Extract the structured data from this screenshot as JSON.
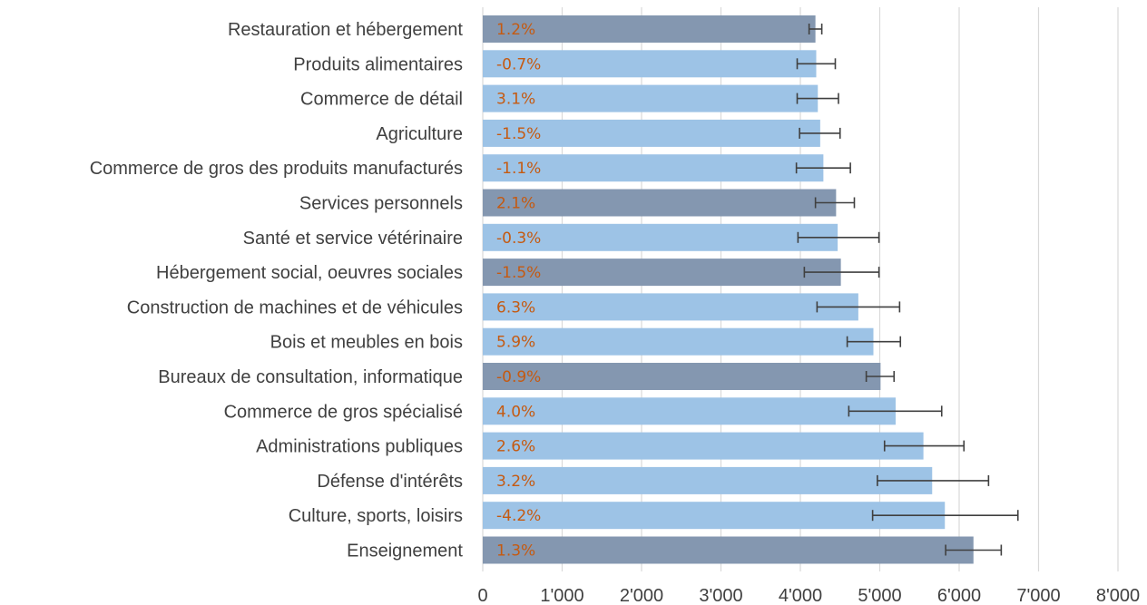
{
  "chart_data": {
    "type": "bar",
    "orientation": "horizontal",
    "categories": [
      "Restauration et hébergement",
      "Produits alimentaires",
      "Commerce de détail",
      "Agriculture",
      "Commerce de gros des produits manufacturés",
      "Services personnels",
      "Santé et service vétérinaire",
      "Hébergement social, oeuvres sociales",
      "Construction de machines et de véhicules",
      "Bois et meubles en bois",
      "Bureaux de consultation, informatique",
      "Commerce de gros spécialisé",
      "Administrations publiques",
      "Défense d'intérêts",
      "Culture, sports, loisirs",
      "Enseignement"
    ],
    "values": [
      4190,
      4200,
      4220,
      4250,
      4290,
      4450,
      4470,
      4510,
      4730,
      4920,
      5010,
      5200,
      5550,
      5660,
      5820,
      6180
    ],
    "error_low": [
      4110,
      3960,
      3960,
      3990,
      3950,
      4190,
      3970,
      4050,
      4210,
      4590,
      4830,
      4610,
      5060,
      4970,
      4910,
      5830
    ],
    "error_high": [
      4270,
      4440,
      4480,
      4500,
      4630,
      4680,
      4990,
      4990,
      5250,
      5260,
      5180,
      5780,
      6060,
      6370,
      6740,
      6530
    ],
    "data_labels": [
      "1.2%",
      "-0.7%",
      "3.1%",
      "-1.5%",
      "-1.1%",
      "2.1%",
      "-0.3%",
      "-1.5%",
      "6.3%",
      "5.9%",
      "-0.9%",
      "4.0%",
      "2.6%",
      "3.2%",
      "-4.2%",
      "1.3%"
    ],
    "highlighted": [
      true,
      false,
      false,
      false,
      false,
      true,
      false,
      true,
      false,
      false,
      true,
      false,
      false,
      false,
      false,
      true
    ],
    "xlim": [
      0,
      8000
    ],
    "x_ticks": [
      0,
      1000,
      2000,
      3000,
      4000,
      5000,
      6000,
      7000,
      8000
    ],
    "x_tick_labels": [
      "0",
      "1'000",
      "2'000",
      "3'000",
      "4'000",
      "5'000",
      "6'000",
      "7'000",
      "8'000"
    ],
    "grid": true,
    "colors": {
      "bar_default": "#9dc3e6",
      "bar_highlight": "#8497b0",
      "data_label": "#c55a11",
      "error_bar": "#404040",
      "gridline": "#d9d9d9",
      "text": "#404040"
    }
  }
}
